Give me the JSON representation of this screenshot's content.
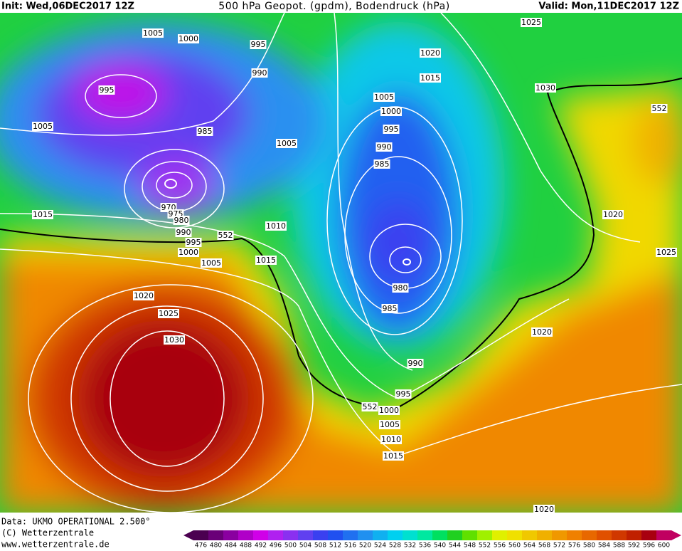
{
  "header": {
    "init": "Init: Wed,06DEC2017 12Z",
    "title": "500 hPa Geopot. (gpdm), Bodendruck (hPa)",
    "valid": "Valid: Mon,11DEC2017 12Z"
  },
  "isobar_labels": [
    "1005",
    "1000",
    "995",
    "990",
    "995",
    "1005",
    "985",
    "1005",
    "970",
    "975",
    "980",
    "990",
    "995",
    "1000",
    "1005",
    "1015",
    "1010",
    "1015",
    "1020",
    "1025",
    "1030",
    "1025",
    "1020",
    "1015",
    "1005",
    "1000",
    "995",
    "990",
    "985",
    "980",
    "985",
    "990",
    "995",
    "1000",
    "1005",
    "1010",
    "1015",
    "1020",
    "1020",
    "1025",
    "1030",
    "1020",
    "552",
    "552",
    "552"
  ],
  "footer": {
    "data": "Data: UKMO OPERATIONAL 2.500°",
    "copyright": "(C) Wetterzentrale",
    "url": "www.wetterzentrale.de"
  },
  "scale": {
    "labels": [
      476,
      480,
      484,
      488,
      492,
      496,
      500,
      504,
      508,
      512,
      516,
      520,
      524,
      528,
      532,
      536,
      540,
      544,
      548,
      552,
      556,
      560,
      564,
      568,
      572,
      576,
      580,
      584,
      588,
      592,
      596,
      600
    ],
    "colors": [
      "#4b0050",
      "#6a0078",
      "#8a00a0",
      "#b000c8",
      "#d000e8",
      "#b020f0",
      "#8a30f0",
      "#6040f0",
      "#3a40f0",
      "#2050f0",
      "#2070f0",
      "#2090f0",
      "#10b0f0",
      "#00d0f0",
      "#00e0d0",
      "#00e8a0",
      "#00e060",
      "#20d020",
      "#60e000",
      "#a0f000",
      "#e0f000",
      "#f0e000",
      "#f0c800",
      "#f0b000",
      "#f09800",
      "#f08000",
      "#e86800",
      "#e05000",
      "#d03800",
      "#c02000",
      "#a80010",
      "#c00060"
    ]
  }
}
